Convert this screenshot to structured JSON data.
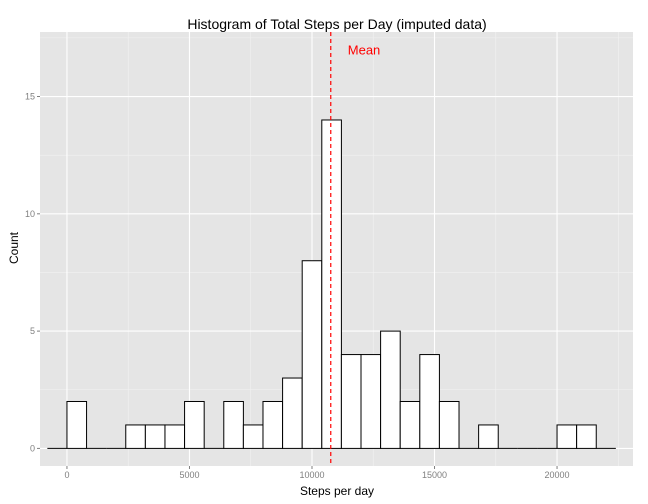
{
  "chart_data": {
    "type": "bar",
    "title": "Histogram of Total Steps per Day (imputed data)",
    "xlabel": "Steps per day",
    "ylabel": "Count",
    "xlim": [
      -1100,
      23100
    ],
    "ylim": [
      -0.75,
      17.75
    ],
    "x_ticks": [
      {
        "value": 0,
        "label": "0"
      },
      {
        "value": 5000,
        "label": "5000"
      },
      {
        "value": 10000,
        "label": "10000"
      },
      {
        "value": 15000,
        "label": "15000"
      },
      {
        "value": 20000,
        "label": "20000"
      }
    ],
    "y_ticks": [
      {
        "value": 0,
        "label": "0"
      },
      {
        "value": 5,
        "label": "5"
      },
      {
        "value": 10,
        "label": "10"
      },
      {
        "value": 15,
        "label": "15"
      }
    ],
    "bins": [
      {
        "x0": -800,
        "x1": 0,
        "count": 0
      },
      {
        "x0": 0,
        "x1": 800,
        "count": 2
      },
      {
        "x0": 800,
        "x1": 1600,
        "count": 0
      },
      {
        "x0": 1600,
        "x1": 2400,
        "count": 0
      },
      {
        "x0": 2400,
        "x1": 3200,
        "count": 1
      },
      {
        "x0": 3200,
        "x1": 4000,
        "count": 1
      },
      {
        "x0": 4000,
        "x1": 4800,
        "count": 1
      },
      {
        "x0": 4800,
        "x1": 5600,
        "count": 2
      },
      {
        "x0": 5600,
        "x1": 6400,
        "count": 0
      },
      {
        "x0": 6400,
        "x1": 7200,
        "count": 2
      },
      {
        "x0": 7200,
        "x1": 8000,
        "count": 1
      },
      {
        "x0": 8000,
        "x1": 8800,
        "count": 2
      },
      {
        "x0": 8800,
        "x1": 9600,
        "count": 3
      },
      {
        "x0": 9600,
        "x1": 10400,
        "count": 8
      },
      {
        "x0": 10400,
        "x1": 11200,
        "count": 14
      },
      {
        "x0": 11200,
        "x1": 12000,
        "count": 4
      },
      {
        "x0": 12000,
        "x1": 12800,
        "count": 4
      },
      {
        "x0": 12800,
        "x1": 13600,
        "count": 5
      },
      {
        "x0": 13600,
        "x1": 14400,
        "count": 2
      },
      {
        "x0": 14400,
        "x1": 15200,
        "count": 4
      },
      {
        "x0": 15200,
        "x1": 16000,
        "count": 2
      },
      {
        "x0": 16000,
        "x1": 16800,
        "count": 0
      },
      {
        "x0": 16800,
        "x1": 17600,
        "count": 1
      },
      {
        "x0": 17600,
        "x1": 18400,
        "count": 0
      },
      {
        "x0": 18400,
        "x1": 19200,
        "count": 0
      },
      {
        "x0": 19200,
        "x1": 20000,
        "count": 0
      },
      {
        "x0": 20000,
        "x1": 20800,
        "count": 1
      },
      {
        "x0": 20800,
        "x1": 21600,
        "count": 1
      },
      {
        "x0": 21600,
        "x1": 22400,
        "count": 0
      }
    ],
    "mean_line": {
      "value": 10766,
      "label": "Mean",
      "color": "#ff0000",
      "style": "dashed"
    },
    "grid": true,
    "colors": {
      "panel_background": "#e5e5e5",
      "grid_major": "#ffffff",
      "grid_minor": "#f2f2f2",
      "bar_fill": "#ffffff",
      "bar_stroke": "#000000"
    }
  }
}
